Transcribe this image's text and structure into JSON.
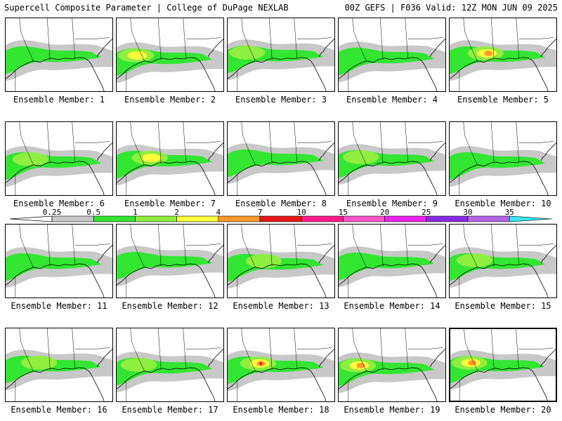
{
  "header": {
    "left": "Supercell Composite Parameter | College of DuPage NEXLAB",
    "right": "00Z GEFS | F036 Valid: 12Z MON JUN 09 2025"
  },
  "members": [
    {
      "label": "Ensemble Member: 1",
      "intensity": 1
    },
    {
      "label": "Ensemble Member: 2",
      "intensity": 3
    },
    {
      "label": "Ensemble Member: 3",
      "intensity": 2
    },
    {
      "label": "Ensemble Member: 4",
      "intensity": 1
    },
    {
      "label": "Ensemble Member: 5",
      "intensity": 4
    },
    {
      "label": "Ensemble Member: 6",
      "intensity": 2
    },
    {
      "label": "Ensemble Member: 7",
      "intensity": 3
    },
    {
      "label": "Ensemble Member: 8",
      "intensity": 1
    },
    {
      "label": "Ensemble Member: 9",
      "intensity": 2
    },
    {
      "label": "Ensemble Member: 10",
      "intensity": 1
    },
    {
      "label": "Ensemble Member: 11",
      "intensity": 1
    },
    {
      "label": "Ensemble Member: 12",
      "intensity": 1
    },
    {
      "label": "Ensemble Member: 13",
      "intensity": 2
    },
    {
      "label": "Ensemble Member: 14",
      "intensity": 1
    },
    {
      "label": "Ensemble Member: 15",
      "intensity": 2
    },
    {
      "label": "Ensemble Member: 16",
      "intensity": 2
    },
    {
      "label": "Ensemble Member: 17",
      "intensity": 2
    },
    {
      "label": "Ensemble Member: 18",
      "intensity": 5
    },
    {
      "label": "Ensemble Member: 19",
      "intensity": 4
    },
    {
      "label": "Ensemble Member: 20",
      "intensity": 4
    }
  ],
  "selected_member": 20,
  "colorbar": {
    "ticks": [
      "0.25",
      "0.5",
      "1",
      "2",
      "4",
      "7",
      "10",
      "15",
      "20",
      "25",
      "30",
      "35"
    ],
    "colors": [
      "#c8c8c8",
      "#32e632",
      "#90ee40",
      "#ffff3c",
      "#ff9a2a",
      "#e81818",
      "#ff1a8c",
      "#ff55c8",
      "#ee22ee",
      "#8a2be2",
      "#b366e6",
      "#34eaf2"
    ]
  },
  "shading_colors": {
    "gray": "#c8c8c8",
    "green": "#32e632",
    "lightgreen": "#90ee40",
    "yellow": "#ffff3c",
    "orange": "#ff9a2a",
    "red": "#e81818"
  }
}
